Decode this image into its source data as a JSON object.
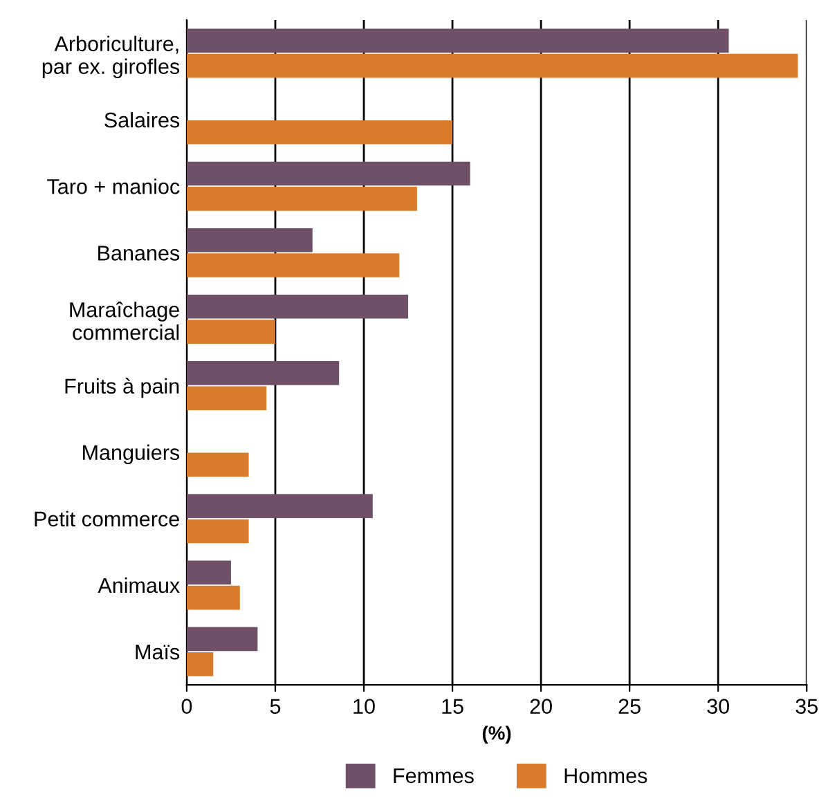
{
  "chart_data": {
    "type": "bar",
    "orientation": "horizontal",
    "categories": [
      "Arboriculture,\npar ex. girofles",
      "Salaires",
      "Taro + manioc",
      "Bananes",
      "Maraîchage\ncommercial",
      "Fruits à pain",
      "Manguiers",
      "Petit commerce",
      "Animaux",
      "Maïs"
    ],
    "series": [
      {
        "name": "Femmes",
        "color": "#6e5068",
        "values": [
          30.6,
          null,
          16.0,
          7.1,
          12.5,
          8.6,
          null,
          10.5,
          2.5,
          4.0
        ]
      },
      {
        "name": "Hommes",
        "color": "#d97b2b",
        "values": [
          34.5,
          15.0,
          13.0,
          12.0,
          5.0,
          4.5,
          3.5,
          3.5,
          3.0,
          1.5
        ]
      }
    ],
    "xlabel": "(%)",
    "xlim": [
      0,
      35
    ],
    "xticks": [
      0,
      5,
      10,
      15,
      20,
      25,
      30,
      35
    ],
    "grid": "x",
    "legend": "bottom"
  }
}
